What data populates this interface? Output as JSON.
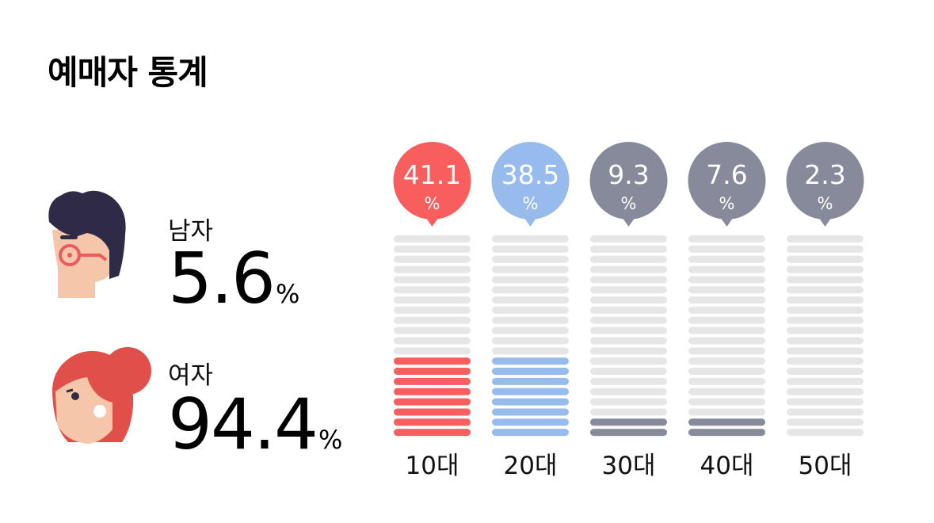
{
  "title": "예매자 통계",
  "gender": {
    "male": {
      "label": "남자",
      "value": "5.6",
      "unit": "%"
    },
    "female": {
      "label": "여자",
      "value": "94.4",
      "unit": "%"
    }
  },
  "colors": {
    "teen": "#f95e5f",
    "twenties": "#96bbec",
    "neutral": "#868a9b",
    "empty": "#e6e6e6"
  },
  "chart_data": {
    "type": "bar",
    "categories": [
      "10대",
      "20대",
      "30대",
      "40대",
      "50대"
    ],
    "values": [
      41.1,
      38.5,
      9.3,
      7.6,
      2.3
    ],
    "value_labels": [
      "41.1",
      "38.5",
      "9.3",
      "7.6",
      "2.3"
    ],
    "unit": "%",
    "segments_total": 20,
    "filled_segments": [
      8,
      8,
      2,
      2,
      0
    ],
    "title": "",
    "xlabel": "",
    "ylabel": "",
    "ylim": [
      0,
      100
    ],
    "grid": false,
    "legend": "none"
  }
}
